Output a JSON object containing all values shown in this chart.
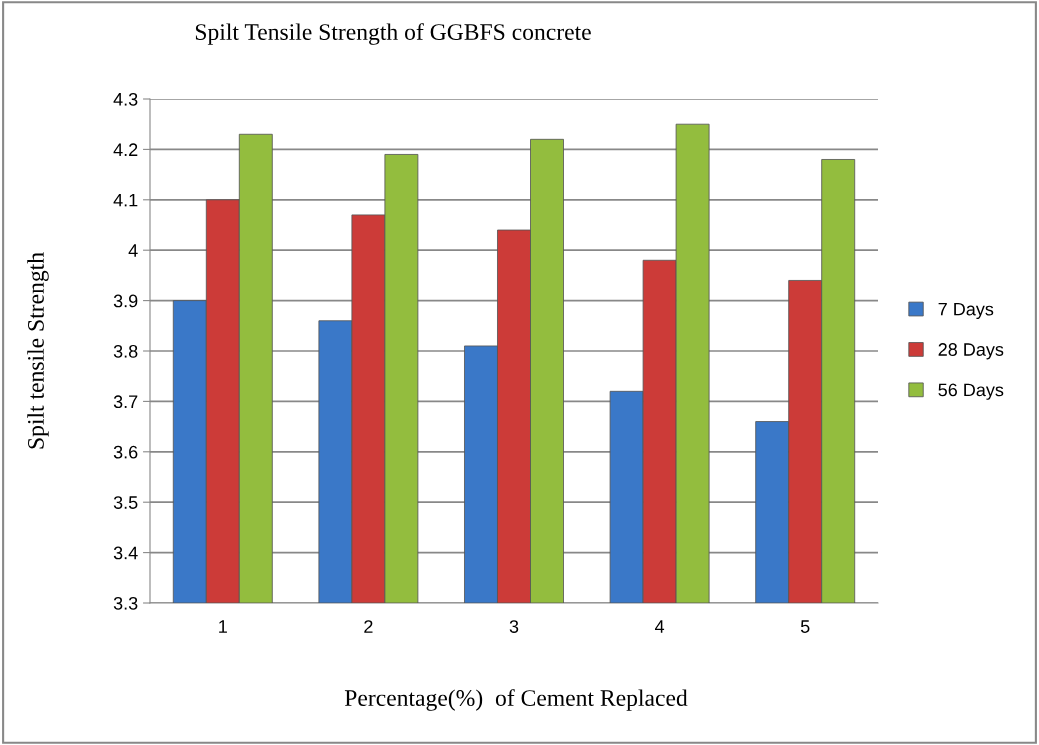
{
  "chart_data": {
    "type": "bar",
    "title": "Spilt Tensile Strength of GGBFS concrete",
    "xlabel": "Percentage(%)  of Cement Replaced",
    "ylabel": "Spilt tensile Strength",
    "categories": [
      "1",
      "2",
      "3",
      "4",
      "5"
    ],
    "series": [
      {
        "name": "7 Days",
        "color": "#3a78c8",
        "values": [
          3.9,
          3.86,
          3.81,
          3.72,
          3.66
        ]
      },
      {
        "name": "28 Days",
        "color": "#cc3b38",
        "values": [
          4.1,
          4.07,
          4.04,
          3.98,
          3.94
        ]
      },
      {
        "name": "56 Days",
        "color": "#93bd3e",
        "values": [
          4.23,
          4.19,
          4.22,
          4.25,
          4.18
        ]
      }
    ],
    "ylim": [
      3.3,
      4.3
    ],
    "yticks": [
      3.3,
      3.4,
      3.5,
      3.6,
      3.7,
      3.8,
      3.9,
      4,
      4.1,
      4.2,
      4.3
    ],
    "grid": "y",
    "legend": "right"
  }
}
